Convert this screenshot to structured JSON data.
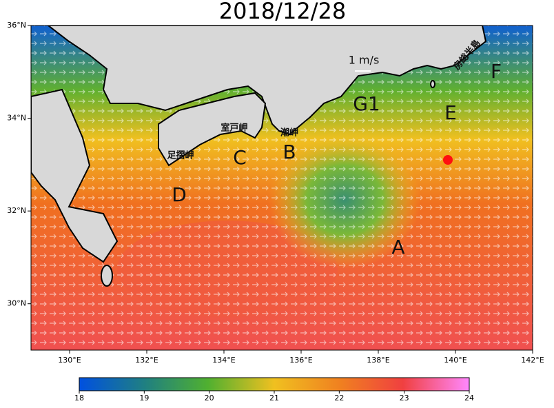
{
  "map": {
    "title": "2018/12/28",
    "xlim": [
      129,
      142
    ],
    "ylim": [
      29,
      36
    ],
    "xticks": [
      {
        "value": 130,
        "label": "130°E"
      },
      {
        "value": 132,
        "label": "132°E"
      },
      {
        "value": 134,
        "label": "134°E"
      },
      {
        "value": 136,
        "label": "136°E"
      },
      {
        "value": 138,
        "label": "138°E"
      },
      {
        "value": 140,
        "label": "140°E"
      },
      {
        "value": 142,
        "label": "142°E"
      }
    ],
    "yticks": [
      {
        "value": 30,
        "label": "30°N"
      },
      {
        "value": 32,
        "label": "32°N"
      },
      {
        "value": 34,
        "label": "34°N"
      },
      {
        "value": 36,
        "label": "36°N"
      }
    ],
    "scale_label": "1 m/s",
    "region_labels": [
      "A",
      "B",
      "C",
      "D",
      "E",
      "F",
      "G1"
    ],
    "place_names": [
      "室戸岬",
      "潮岬",
      "足摺岬",
      "房総半島"
    ],
    "colorbar": {
      "lim": [
        18,
        24
      ],
      "ticks": [
        18,
        19,
        20,
        21,
        22,
        23,
        24
      ]
    }
  }
}
